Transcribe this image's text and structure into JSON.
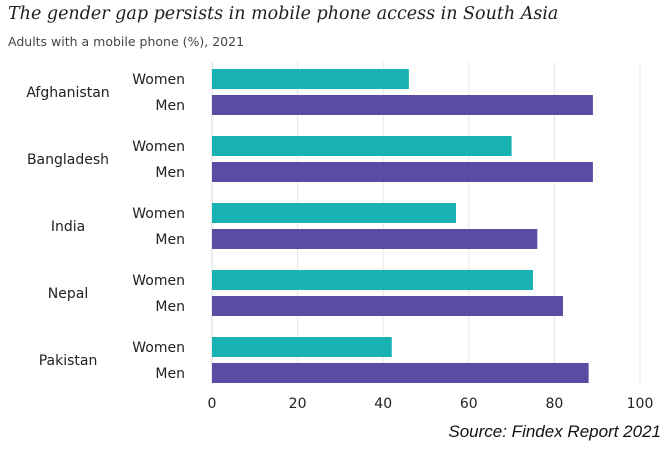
{
  "chart_data": {
    "type": "bar",
    "orientation": "horizontal",
    "title": "The gender gap persists in mobile phone access in South Asia",
    "subtitle": "Adults with a mobile phone (%), 2021",
    "xlabel": "",
    "ylabel": "",
    "xlim": [
      0,
      100
    ],
    "x_ticks": [
      "0",
      "20",
      "40",
      "60",
      "80",
      "100"
    ],
    "grid": "vertical",
    "categories": [
      "Afghanistan",
      "Bangladesh",
      "India",
      "Nepal",
      "Pakistan"
    ],
    "series": [
      {
        "name": "Women",
        "color": "#19b2b2",
        "values": [
          46,
          70,
          57,
          75,
          42
        ]
      },
      {
        "name": "Men",
        "color": "#5b4ba3",
        "values": [
          89,
          89,
          76,
          82,
          88
        ]
      }
    ]
  },
  "source": "Source: Findex Report 2021"
}
